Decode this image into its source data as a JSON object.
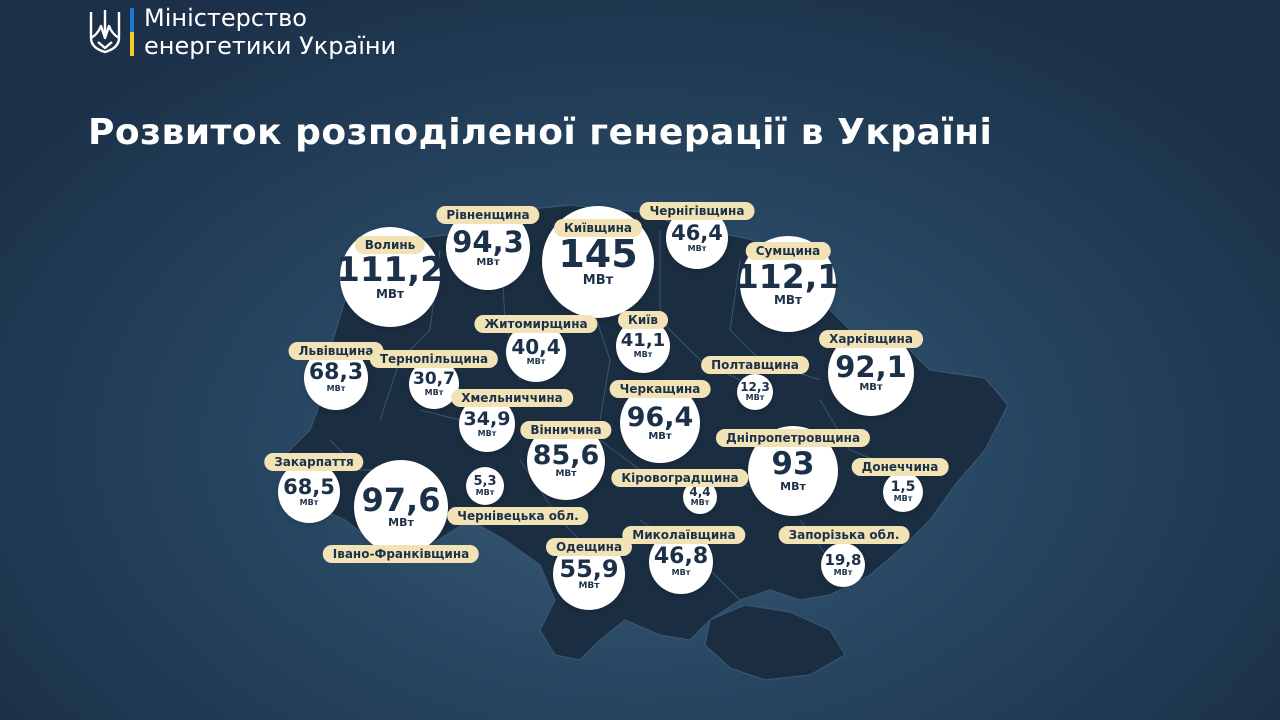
{
  "header": {
    "ministry_line1": "Міністерство",
    "ministry_line2": "енергетики України",
    "logo_icon": "trident-icon",
    "flag_colors": [
      "#1f77d6",
      "#f6c92c"
    ]
  },
  "title": "Розвиток розподіленої генерації в Україні",
  "unit": "МВт",
  "colors": {
    "label_bg": "#f1e3b6",
    "bubble_bg": "#ffffff",
    "text_dark": "#1c3149",
    "map_fill": "#1b2d40"
  },
  "regions": [
    {
      "name": "Волинь",
      "value": "111,2",
      "unit": "МВт"
    },
    {
      "name": "Рівненщина",
      "value": "94,3",
      "unit": "МВт"
    },
    {
      "name": "Київщина",
      "value": "145",
      "unit": "МВт"
    },
    {
      "name": "Чернігівщина",
      "value": "46,4",
      "unit": "МВт"
    },
    {
      "name": "Сумщина",
      "value": "112,1",
      "unit": "МВт"
    },
    {
      "name": "Житомирщина",
      "value": "40,4",
      "unit": "МВт"
    },
    {
      "name": "Київ",
      "value": "41,1",
      "unit": "МВт"
    },
    {
      "name": "Львівщина",
      "value": "68,3",
      "unit": "МВт"
    },
    {
      "name": "Тернопільщина",
      "value": "30,7",
      "unit": "МВт"
    },
    {
      "name": "Полтавщина",
      "value": "12,3",
      "unit": "МВт"
    },
    {
      "name": "Харківщина",
      "value": "92,1",
      "unit": "МВт"
    },
    {
      "name": "Хмельниччина",
      "value": "34,9",
      "unit": "МВт"
    },
    {
      "name": "Черкащина",
      "value": "96,4",
      "unit": "МВт"
    },
    {
      "name": "Вінничина",
      "value": "85,6",
      "unit": "МВт"
    },
    {
      "name": "Дніпропетровщина",
      "value": "93",
      "unit": "МВт"
    },
    {
      "name": "Закарпаття",
      "value": "68,5",
      "unit": "МВт"
    },
    {
      "name": "Івано-Франківщина",
      "value": "97,6",
      "unit": "МВт"
    },
    {
      "name": "Чернівецька обл.",
      "value": "5,3",
      "unit": "МВт"
    },
    {
      "name": "Кіровоградщина",
      "value": "4,4",
      "unit": "МВт"
    },
    {
      "name": "Донеччина",
      "value": "1,5",
      "unit": "МВт"
    },
    {
      "name": "Одещина",
      "value": "55,9",
      "unit": "МВт"
    },
    {
      "name": "Миколаївщина",
      "value": "46,8",
      "unit": "МВт"
    },
    {
      "name": "Запорізька обл.",
      "value": "19,8",
      "unit": "МВт"
    }
  ]
}
